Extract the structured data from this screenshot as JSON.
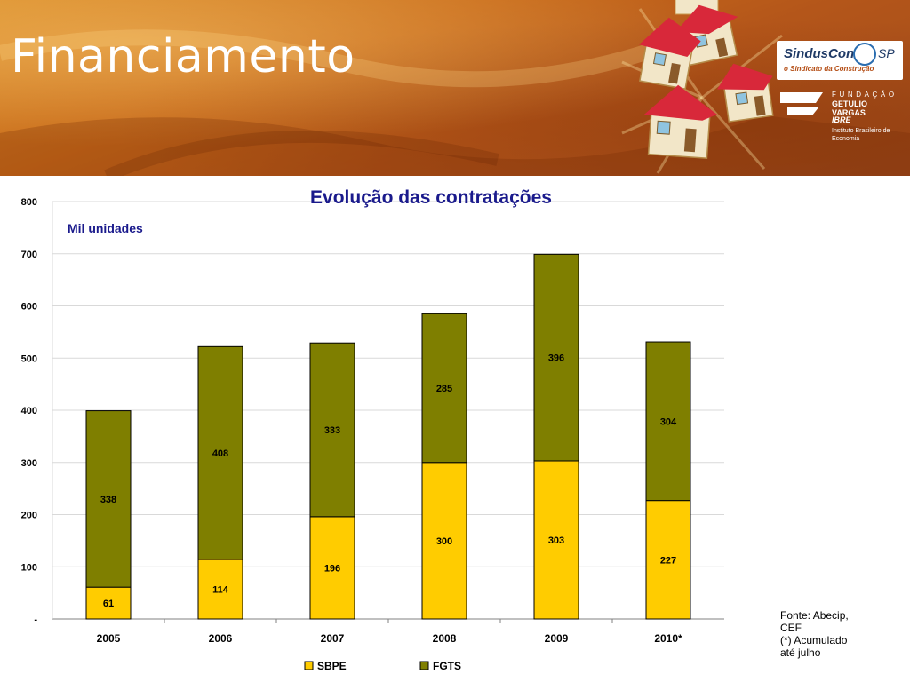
{
  "header": {
    "title": "Financiamento",
    "logos": {
      "sinduscon_name": "SindusCon",
      "sinduscon_region": "SP",
      "sinduscon_tagline": "o Sindicato da Construção",
      "fgv_fundacao": "FUNDAÇÃO",
      "fgv_name": "GETULIO VARGAS",
      "fgv_ibre": "IBRE",
      "fgv_institute": "Instituto Brasileiro de Economia"
    },
    "colors": {
      "title": "#ffffff",
      "banner": "#c06a1e",
      "house_roof": "#d8283a",
      "house_wall": "#f2e6c8"
    }
  },
  "chart_data": {
    "type": "bar",
    "stacked": true,
    "title": "Evolução das contratações",
    "subtitle": "Mil unidades",
    "categories": [
      "2005",
      "2006",
      "2007",
      "2008",
      "2009",
      "2010*"
    ],
    "series": [
      {
        "name": "SBPE",
        "color": "#ffcc00",
        "values": [
          61,
          114,
          196,
          300,
          303,
          227
        ]
      },
      {
        "name": "FGTS",
        "color": "#7f7f00",
        "values": [
          338,
          408,
          333,
          285,
          396,
          304
        ]
      }
    ],
    "y_ticks": [
      "-",
      "100",
      "200",
      "300",
      "400",
      "500",
      "600",
      "700",
      "800"
    ],
    "ylim": [
      0,
      800
    ],
    "grid": true,
    "legend_position": "bottom"
  },
  "footer": {
    "source_lines": [
      "Fonte: Abecip,",
      "CEF",
      "(*) Acumulado",
      "até julho"
    ]
  }
}
